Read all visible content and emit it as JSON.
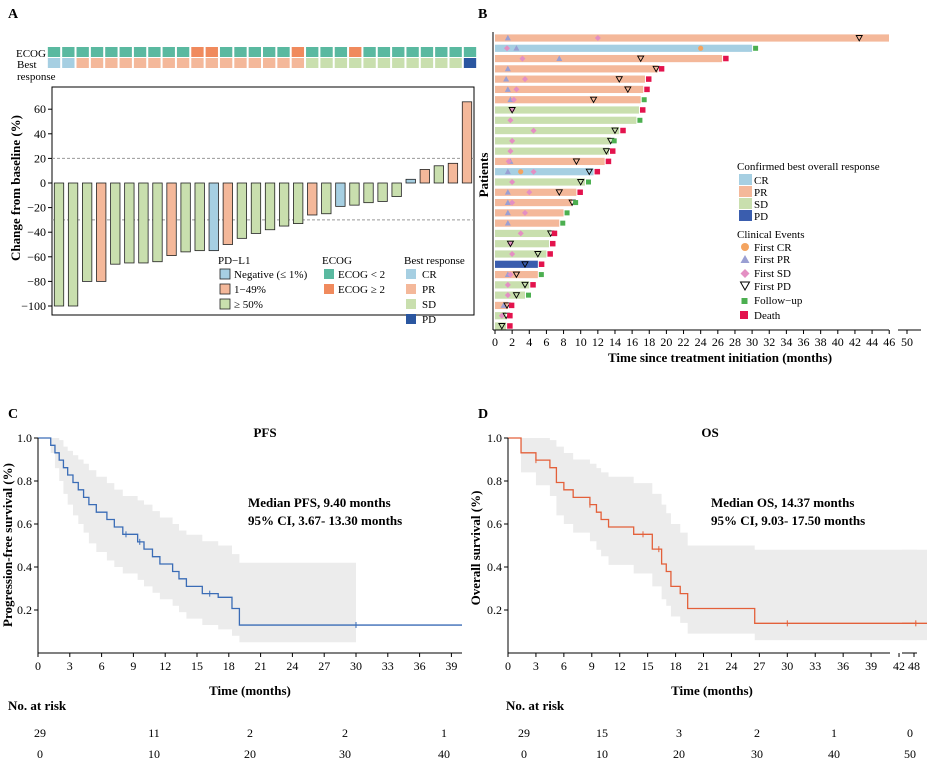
{
  "panels": {
    "a": "A",
    "b": "B",
    "c": "C",
    "d": "D"
  },
  "colors": {
    "CR": "#a6cfe2",
    "PR": "#f4b89a",
    "SD": "#c9dfae",
    "PD": "#2a56a0",
    "ecog_lt2": "#5ab9a0",
    "ecog_ge2": "#f08a5d",
    "first_cr": "#f4a460",
    "first_pr": "#9a9fd3",
    "first_sd": "#e48fc3",
    "follow_up": "#4caf50",
    "death": "#e3134d",
    "pfs_line": "#3a6cb6",
    "os_line": "#e3603a",
    "ci_band": "#ececec"
  },
  "panel_a": {
    "ecog_label": "ECOG",
    "best_response_label_line1": "Best",
    "best_response_label_line2": "response",
    "ylabel": "Change from baseline (%)",
    "legend_pdl1_title": "PD−L1",
    "legend_pdl1": [
      "Negative (≤ 1%)",
      "1−49%",
      "≥ 50%"
    ],
    "legend_ecog_title": "ECOG",
    "legend_ecog": [
      "ECOG < 2",
      "ECOG ≥ 2"
    ],
    "legend_br_title": "Best response",
    "legend_br": [
      "CR",
      "PR",
      "SD",
      "PD"
    ]
  },
  "panel_b": {
    "ylabel": "Patients",
    "xlabel": "Time since treatment initiation (months)",
    "legend_title": "Confirmed best overall response",
    "legend_resp": [
      "CR",
      "PR",
      "SD",
      "PD"
    ],
    "legend_events_title": "Clinical Events",
    "legend_events": [
      "First CR",
      "First PR",
      "First SD",
      "First PD",
      "Follow−up",
      "Death"
    ]
  },
  "panel_c": {
    "title": "PFS",
    "median": "Median PFS, 9.40 months",
    "ci": "95% CI, 3.67- 13.30 months",
    "ylabel": "Progression-free survival (%)",
    "xlabel": "Time (months)",
    "risk_title": "No. at risk",
    "risk_numbers": [
      "29",
      "11",
      "2",
      "2",
      "1"
    ],
    "risk_times": [
      "0",
      "10",
      "20",
      "30",
      "40"
    ]
  },
  "panel_d": {
    "title": "OS",
    "median": "Median OS, 14.37 months",
    "ci": "95% CI, 9.03- 17.50 months",
    "ylabel": "Overall survival (%)",
    "xlabel": "Time (months)",
    "risk_title": "No. at risk",
    "risk_numbers": [
      "29",
      "15",
      "3",
      "2",
      "1",
      "0"
    ],
    "risk_times": [
      "0",
      "10",
      "20",
      "30",
      "40",
      "50"
    ]
  },
  "chart_data": [
    {
      "type": "bar",
      "panel": "A",
      "ylabel": "Change from baseline (%)",
      "ylim": [
        -110,
        70
      ],
      "yticks": [
        -100,
        -80,
        -60,
        -40,
        -20,
        0,
        20,
        40,
        60
      ],
      "reference_lines": [
        20,
        -30
      ],
      "values": [
        -100,
        -100,
        -80,
        -80,
        -66,
        -65,
        -65,
        -64,
        -59,
        -56,
        -55,
        -55,
        -50,
        -45,
        -41,
        -38,
        -35,
        -33,
        -26,
        -25,
        -19,
        -18,
        -16,
        -15,
        -11,
        3,
        11,
        14,
        16,
        66
      ],
      "pdl1": [
        "high",
        "high",
        "high",
        "mid",
        "high",
        "high",
        "high",
        "high",
        "mid",
        "high",
        "high",
        "neg",
        "mid",
        "high",
        "high",
        "high",
        "high",
        "high",
        "mid",
        "high",
        "neg",
        "high",
        "high",
        "high",
        "high",
        "neg",
        "mid",
        "high",
        "mid",
        "mid"
      ],
      "best_response": [
        "CR",
        "CR",
        "PR",
        "PR",
        "PR",
        "PR",
        "PR",
        "PR",
        "PR",
        "PR",
        "PR",
        "PR",
        "PR",
        "PR",
        "PR",
        "PR",
        "PR",
        "PR",
        "SD",
        "SD",
        "SD",
        "SD",
        "SD",
        "SD",
        "SD",
        "SD",
        "SD",
        "SD",
        "SD",
        "PD"
      ],
      "ecog": [
        "<2",
        "<2",
        "<2",
        "<2",
        "<2",
        "<2",
        "<2",
        "<2",
        "<2",
        "<2",
        "ge2",
        "ge2",
        "<2",
        "<2",
        "<2",
        "<2",
        "<2",
        "ge2",
        "<2",
        "<2",
        "<2",
        "ge2",
        "<2",
        "<2",
        "<2",
        "<2",
        "<2",
        "<2",
        "<2",
        "<2"
      ]
    },
    {
      "type": "bar",
      "panel": "B",
      "xlabel": "Time since treatment initiation (months)",
      "ylabel": "Patients",
      "xlim": [
        0,
        51
      ],
      "xticks": [
        0,
        2,
        4,
        6,
        8,
        10,
        12,
        14,
        16,
        18,
        20,
        22,
        24,
        26,
        28,
        30,
        32,
        34,
        36,
        38,
        40,
        42,
        44,
        46,
        50
      ],
      "patients": [
        {
          "bar": 50,
          "resp": "PR",
          "end": "none",
          "pr": 1.5,
          "sd": 12,
          "pd": 42.5
        },
        {
          "bar": 30,
          "resp": "CR",
          "end": "follow",
          "cr": 24,
          "pr": 2.5,
          "sd": 1.4
        },
        {
          "bar": 26.5,
          "resp": "PR",
          "end": "death",
          "pr": 7.5,
          "sd": 3.2,
          "pd": 17
        },
        {
          "bar": 19,
          "resp": "PR",
          "end": "death",
          "pr": 1.5,
          "pd": 18.8
        },
        {
          "bar": 17.5,
          "resp": "PR",
          "end": "death",
          "pr": 1.3,
          "sd": 3.5,
          "pd": 14.5
        },
        {
          "bar": 17.3,
          "resp": "PR",
          "end": "death",
          "pr": 1.5,
          "sd": 2.5,
          "pd": 15.5
        },
        {
          "bar": 17,
          "resp": "PR",
          "end": "follow",
          "pr": 1.8,
          "sd": 2.2,
          "pd": 11.5
        },
        {
          "bar": 16.8,
          "resp": "SD",
          "end": "death",
          "sd": 2,
          "pd": 2
        },
        {
          "bar": 16.5,
          "resp": "SD",
          "end": "follow",
          "sd": 1.8
        },
        {
          "bar": 14.5,
          "resp": "SD",
          "end": "death",
          "sd": 4.5,
          "pd": 14
        },
        {
          "bar": 13.5,
          "resp": "SD",
          "end": "follow",
          "sd": 2,
          "pd": 13.5
        },
        {
          "bar": 13.3,
          "resp": "SD",
          "end": "death",
          "sd": 1.8,
          "pd": 13
        },
        {
          "bar": 12.8,
          "resp": "PR",
          "end": "death",
          "pr": 1.8,
          "sd": 1.6,
          "pd": 9.5
        },
        {
          "bar": 11.5,
          "resp": "CR",
          "end": "death",
          "cr": 3,
          "pr": 1.5,
          "sd": 4.5,
          "pd": 11
        },
        {
          "bar": 10.5,
          "resp": "SD",
          "end": "follow",
          "sd": 2,
          "pd": 10
        },
        {
          "bar": 9.5,
          "resp": "PR",
          "end": "death",
          "pr": 1.5,
          "sd": 4,
          "pd": 7.5
        },
        {
          "bar": 9,
          "resp": "PR",
          "end": "follow",
          "pr": 1.5,
          "sd": 2,
          "pd": 9
        },
        {
          "bar": 8,
          "resp": "PR",
          "end": "follow",
          "pr": 1.5,
          "sd": 3.5
        },
        {
          "bar": 7.5,
          "resp": "PR",
          "end": "follow",
          "pr": 1.5
        },
        {
          "bar": 6.5,
          "resp": "SD",
          "end": "death",
          "sd": 3,
          "pd": 6.5
        },
        {
          "bar": 6.3,
          "resp": "SD",
          "end": "death",
          "sd": 1.8,
          "pd": 1.8
        },
        {
          "bar": 6,
          "resp": "SD",
          "end": "death",
          "sd": 2,
          "pd": 5
        },
        {
          "bar": 5,
          "resp": "PD",
          "end": "death",
          "pd": 3.5
        },
        {
          "bar": 5,
          "resp": "PR",
          "end": "follow",
          "pr": 1.5,
          "sd": 1.8,
          "pd": 2.5
        },
        {
          "bar": 4,
          "resp": "SD",
          "end": "death",
          "sd": 1.5,
          "pd": 3.5
        },
        {
          "bar": 3.5,
          "resp": "SD",
          "end": "follow",
          "sd": 1.5,
          "pd": 2.5
        },
        {
          "bar": 1.5,
          "resp": "PR",
          "end": "death",
          "pr": 1,
          "pd": 1.4
        },
        {
          "bar": 1.3,
          "resp": "SD",
          "end": "death",
          "sd": 0.8,
          "pd": 1.3
        },
        {
          "bar": 1.3,
          "resp": "SD",
          "end": "death",
          "pd": 0.8
        }
      ]
    },
    {
      "type": "line",
      "panel": "C",
      "title": "PFS",
      "xlabel": "Time (months)",
      "ylabel": "Progression-free survival (%)",
      "xlim": [
        0,
        40
      ],
      "ylim": [
        0,
        1
      ],
      "xticks": [
        0,
        3,
        6,
        9,
        12,
        15,
        18,
        21,
        24,
        27,
        30,
        33,
        36,
        39
      ],
      "yticks": [
        0.2,
        0.4,
        0.6,
        0.8,
        1.0
      ],
      "x": [
        0,
        1.2,
        1.6,
        2.0,
        2.4,
        2.8,
        3.3,
        3.8,
        4.3,
        4.8,
        5.5,
        6.5,
        7.2,
        8.0,
        9.4,
        10.0,
        10.8,
        11.5,
        12.7,
        13.3,
        14.0,
        15.5,
        17.0,
        18.3,
        19.0,
        40.0
      ],
      "y": [
        1.0,
        0.966,
        0.931,
        0.897,
        0.862,
        0.828,
        0.793,
        0.759,
        0.724,
        0.69,
        0.655,
        0.621,
        0.586,
        0.552,
        0.517,
        0.483,
        0.448,
        0.414,
        0.379,
        0.345,
        0.31,
        0.276,
        0.259,
        0.207,
        0.13,
        0.13
      ],
      "ci_upper": [
        1.0,
        1.0,
        1.0,
        0.99,
        0.96,
        0.94,
        0.92,
        0.9,
        0.88,
        0.85,
        0.82,
        0.79,
        0.76,
        0.73,
        0.71,
        0.69,
        0.66,
        0.63,
        0.6,
        0.57,
        0.55,
        0.52,
        0.5,
        0.46,
        0.42,
        0.42
      ],
      "ci_lower": [
        1.0,
        0.93,
        0.86,
        0.8,
        0.74,
        0.69,
        0.64,
        0.6,
        0.56,
        0.51,
        0.47,
        0.43,
        0.4,
        0.37,
        0.34,
        0.31,
        0.28,
        0.25,
        0.22,
        0.19,
        0.16,
        0.13,
        0.11,
        0.08,
        0.05,
        0.05
      ],
      "ci_end": 30,
      "censor_x": [
        8.3,
        9.6,
        16.2,
        30.0
      ]
    },
    {
      "type": "line",
      "panel": "D",
      "title": "OS",
      "xlabel": "Time (months)",
      "ylabel": "Overall survival (%)",
      "xlim": [
        0,
        50
      ],
      "ylim": [
        0,
        1
      ],
      "xticks": [
        0,
        3,
        6,
        9,
        12,
        15,
        18,
        21,
        24,
        27,
        30,
        33,
        36,
        39,
        42,
        48
      ],
      "yticks": [
        0.2,
        0.4,
        0.6,
        0.8,
        1.0
      ],
      "x": [
        0,
        1.4,
        3.0,
        4.5,
        5.2,
        6.0,
        7.0,
        8.8,
        9.5,
        10.0,
        10.8,
        13.5,
        15.5,
        16.5,
        17.0,
        17.5,
        18.5,
        19.3,
        26.5,
        50.0
      ],
      "y": [
        1.0,
        0.931,
        0.897,
        0.862,
        0.793,
        0.759,
        0.724,
        0.69,
        0.655,
        0.621,
        0.586,
        0.552,
        0.483,
        0.414,
        0.379,
        0.31,
        0.276,
        0.207,
        0.138,
        0.138
      ],
      "ci_upper": [
        1.0,
        1.0,
        1.0,
        0.99,
        0.96,
        0.93,
        0.9,
        0.88,
        0.86,
        0.84,
        0.82,
        0.79,
        0.74,
        0.69,
        0.65,
        0.6,
        0.56,
        0.5,
        0.48,
        0.48
      ],
      "ci_lower": [
        1.0,
        0.84,
        0.78,
        0.73,
        0.64,
        0.6,
        0.56,
        0.52,
        0.48,
        0.45,
        0.41,
        0.37,
        0.31,
        0.25,
        0.22,
        0.17,
        0.14,
        0.09,
        0.06,
        0.06
      ],
      "ci_end": 45.5,
      "censor_x": [
        3.0,
        8.8,
        14.5,
        16.2,
        30.0,
        48.3
      ]
    }
  ]
}
